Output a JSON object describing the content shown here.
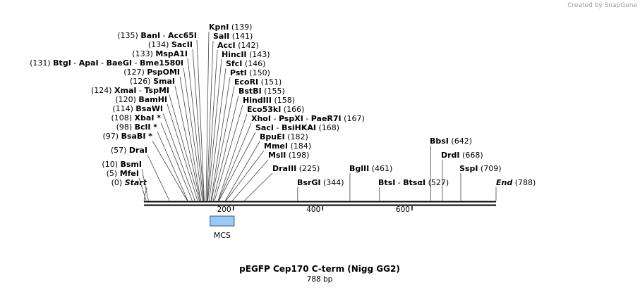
{
  "credit": "Created by SnapGene",
  "title": "pEGFP Cep170 C-term (Nigg GG2)",
  "length_label": "788 bp",
  "feature": {
    "label": "MCS",
    "start": 148,
    "end": 202,
    "color": "#99c9f7"
  },
  "ruler": {
    "length": 788,
    "ticks": [
      {
        "value": 200,
        "label": "200"
      },
      {
        "value": 400,
        "label": "400"
      },
      {
        "value": 600,
        "label": "600"
      }
    ]
  },
  "sites": [
    {
      "names": [
        "Start"
      ],
      "pos": 0,
      "label": "(0)",
      "italic": true
    },
    {
      "names": [
        "MfeI"
      ],
      "pos": 5,
      "label": "(5)"
    },
    {
      "names": [
        "BsmI"
      ],
      "pos": 10,
      "label": "(10)"
    },
    {
      "names": [
        "DraI"
      ],
      "pos": 57,
      "label": "(57)"
    },
    {
      "names": [
        "BsaBI *"
      ],
      "pos": 97,
      "label": "(97)"
    },
    {
      "names": [
        "BclI *"
      ],
      "pos": 98,
      "label": "(98)"
    },
    {
      "names": [
        "XbaI *"
      ],
      "pos": 108,
      "label": "(108)"
    },
    {
      "names": [
        "BsaWI"
      ],
      "pos": 114,
      "label": "(114)"
    },
    {
      "names": [
        "BamHI"
      ],
      "pos": 120,
      "label": "(120)"
    },
    {
      "names": [
        "XmaI",
        "TspMI"
      ],
      "pos": 124,
      "label": "(124)"
    },
    {
      "names": [
        "SmaI"
      ],
      "pos": 126,
      "label": "(126)"
    },
    {
      "names": [
        "PspOMI"
      ],
      "pos": 127,
      "label": "(127)"
    },
    {
      "names": [
        "BtgI",
        "ApaI",
        "BaeGI",
        "Bme1580I"
      ],
      "pos": 131,
      "label": "(131)"
    },
    {
      "names": [
        "MspA1I"
      ],
      "pos": 133,
      "label": "(133)"
    },
    {
      "names": [
        "SacII"
      ],
      "pos": 134,
      "label": "(134)"
    },
    {
      "names": [
        "BanI",
        "Acc65I"
      ],
      "pos": 135,
      "label": "(135)"
    },
    {
      "names": [
        "KpnI"
      ],
      "pos": 139,
      "label": "(139)"
    },
    {
      "names": [
        "SalI"
      ],
      "pos": 141,
      "label": "(141)"
    },
    {
      "names": [
        "AccI"
      ],
      "pos": 142,
      "label": "(142)"
    },
    {
      "names": [
        "HincII"
      ],
      "pos": 143,
      "label": "(143)"
    },
    {
      "names": [
        "SfcI"
      ],
      "pos": 146,
      "label": "(146)"
    },
    {
      "names": [
        "PstI"
      ],
      "pos": 150,
      "label": "(150)"
    },
    {
      "names": [
        "EcoRI"
      ],
      "pos": 151,
      "label": "(151)"
    },
    {
      "names": [
        "BstBI"
      ],
      "pos": 155,
      "label": "(155)"
    },
    {
      "names": [
        "HindIII"
      ],
      "pos": 158,
      "label": "(158)"
    },
    {
      "names": [
        "Eco53kI"
      ],
      "pos": 166,
      "label": "(166)"
    },
    {
      "names": [
        "XhoI",
        "PspXI",
        "PaeR7I"
      ],
      "pos": 167,
      "label": "(167)"
    },
    {
      "names": [
        "SacI",
        "BsiHKAI"
      ],
      "pos": 168,
      "label": "(168)"
    },
    {
      "names": [
        "BpuEI"
      ],
      "pos": 182,
      "label": "(182)"
    },
    {
      "names": [
        "MmeI"
      ],
      "pos": 184,
      "label": "(184)"
    },
    {
      "names": [
        "MslI"
      ],
      "pos": 198,
      "label": "(198)"
    },
    {
      "names": [
        "DraIII"
      ],
      "pos": 225,
      "label": "(225)"
    },
    {
      "names": [
        "BsrGI"
      ],
      "pos": 344,
      "label": "(344)"
    },
    {
      "names": [
        "BglII"
      ],
      "pos": 461,
      "label": "(461)"
    },
    {
      "names": [
        "BtsI",
        "BtsαI"
      ],
      "pos": 527,
      "label": "(527)"
    },
    {
      "names": [
        "BbsI"
      ],
      "pos": 642,
      "label": "(642)"
    },
    {
      "names": [
        "DrdI"
      ],
      "pos": 668,
      "label": "(668)"
    },
    {
      "names": [
        "SspI"
      ],
      "pos": 709,
      "label": "(709)"
    },
    {
      "names": [
        "End"
      ],
      "pos": 788,
      "label": "(788)",
      "italic": true
    }
  ]
}
